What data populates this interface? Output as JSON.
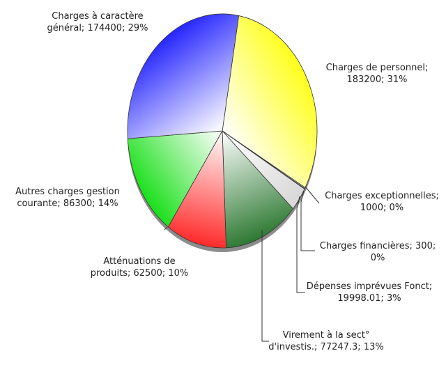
{
  "chart_data": {
    "type": "pie",
    "values": [
      183200,
      1000,
      300,
      19998.01,
      77247.3,
      62500,
      86300,
      174400
    ],
    "value_labels": [
      "Charges de personnel; 183200; 31%",
      "Charges exceptionnelles; 1000; 0%",
      "Charges financières; 300; 0%",
      "Dépenses imprévues Fonct; 19998.01; 3%",
      "Virement à la sect° d'investis.; 77247.3; 13%",
      "Atténuations de produits; 62500; 10%",
      "Autres charges gestion courante; 86300; 14%",
      "Charges à caractère général; 174400; 29%"
    ],
    "colors": [
      "#ffff1e",
      "#bdbdbd",
      "#8a8a8a",
      "#d8d8d8",
      "#2f7a34",
      "#ff2b2b",
      "#1ee01e",
      "#2a2aff"
    ]
  }
}
